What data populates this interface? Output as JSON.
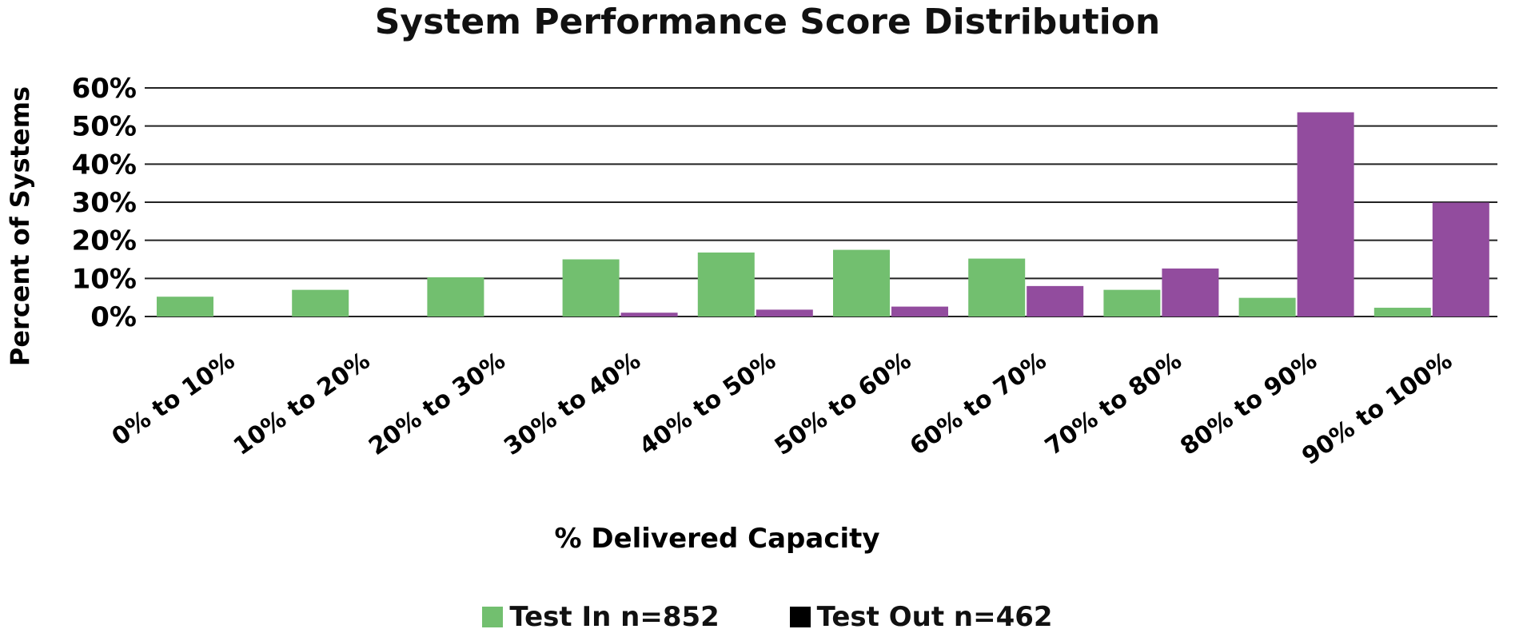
{
  "chart_data": {
    "type": "bar",
    "title": "System Performance Score Distribution",
    "xlabel": "% Delivered Capacity",
    "ylabel": "Percent of Systems",
    "ylim": [
      0,
      60
    ],
    "yticks": [
      "0%",
      "10%",
      "20%",
      "30%",
      "40%",
      "50%",
      "60%"
    ],
    "grid": true,
    "legend_position": "bottom",
    "categories": [
      "0% to 10%",
      "10% to 20%",
      "20% to 30%",
      "30% to 40%",
      "40% to 50%",
      "50% to 60%",
      "60% to 70%",
      "70% to 80%",
      "80% to 90%",
      "90% to 100%"
    ],
    "series": [
      {
        "name": "Test In n=852",
        "color": "#72bf6f",
        "values": [
          5.2,
          7.0,
          10.3,
          15.0,
          16.8,
          17.5,
          15.2,
          7.0,
          4.9,
          2.3
        ]
      },
      {
        "name": "Test Out n=462",
        "color": "#924c9e",
        "legend_swatch_color": "#000000",
        "values": [
          0,
          0,
          0,
          1.0,
          1.8,
          2.6,
          8.0,
          12.6,
          53.6,
          29.9
        ]
      }
    ]
  }
}
